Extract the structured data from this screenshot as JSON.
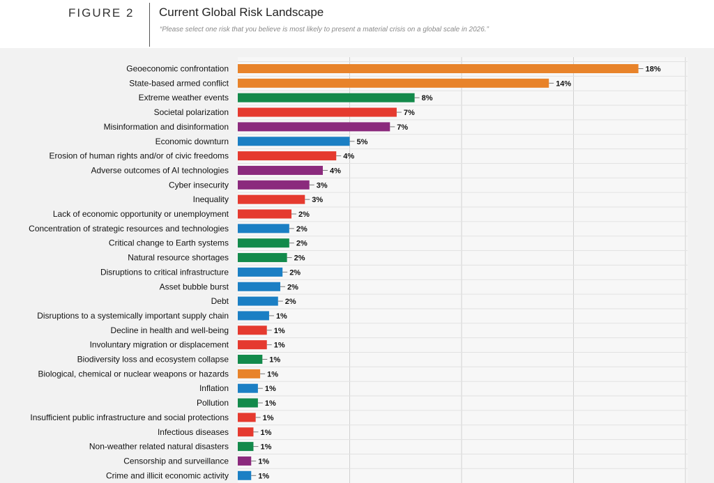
{
  "figure": {
    "label": "FIGURE 2",
    "title": "Current Global Risk Landscape",
    "subtitle": "“Please select one risk that you believe is most likely to present a material crisis on a global scale in 2026.”"
  },
  "colors": {
    "orange": "#e8832a",
    "green": "#138a4b",
    "red": "#e53a2f",
    "purple": "#8b2a7d",
    "blue": "#1b7fc4"
  },
  "chart_data": {
    "type": "bar",
    "orientation": "horizontal",
    "xlim": [
      0,
      20
    ],
    "grid": true,
    "categories": [
      "Geoeconomic confrontation",
      "State-based armed conflict",
      "Extreme weather events",
      "Societal polarization",
      "Misinformation and disinformation",
      "Economic downturn",
      "Erosion of human rights and/or of civic freedoms",
      "Adverse outcomes of AI technologies",
      "Cyber insecurity",
      "Inequality",
      "Lack of economic opportunity or unemployment",
      "Concentration of strategic resources and technologies",
      "Critical change to Earth systems",
      "Natural resource shortages",
      "Disruptions to critical infrastructure",
      "Asset bubble burst",
      "Debt",
      "Disruptions to a systemically important supply chain",
      "Decline in health and well-being",
      "Involuntary migration or displacement",
      "Biodiversity loss and ecosystem collapse",
      "Biological, chemical or nuclear weapons or hazards",
      "Inflation",
      "Pollution",
      "Insufficient public infrastructure and social protections",
      "Infectious diseases",
      "Non-weather related natural disasters",
      "Censorship and surveillance",
      "Crime and illicit economic activity"
    ],
    "values": [
      17.9,
      13.9,
      7.9,
      7.1,
      6.8,
      5.0,
      4.4,
      3.8,
      3.2,
      3.0,
      2.4,
      2.3,
      2.3,
      2.2,
      2.0,
      1.9,
      1.8,
      1.4,
      1.3,
      1.3,
      1.1,
      1.0,
      0.9,
      0.9,
      0.8,
      0.7,
      0.7,
      0.6,
      0.6
    ],
    "labels": [
      "18%",
      "14%",
      "8%",
      "7%",
      "7%",
      "5%",
      "4%",
      "4%",
      "3%",
      "3%",
      "2%",
      "2%",
      "2%",
      "2%",
      "2%",
      "2%",
      "2%",
      "1%",
      "1%",
      "1%",
      "1%",
      "1%",
      "1%",
      "1%",
      "1%",
      "1%",
      "1%",
      "1%",
      "1%"
    ],
    "bar_colors": [
      "orange",
      "orange",
      "green",
      "red",
      "purple",
      "blue",
      "red",
      "purple",
      "purple",
      "red",
      "red",
      "blue",
      "green",
      "green",
      "blue",
      "blue",
      "blue",
      "blue",
      "red",
      "red",
      "green",
      "orange",
      "blue",
      "green",
      "red",
      "red",
      "green",
      "purple",
      "blue"
    ]
  }
}
